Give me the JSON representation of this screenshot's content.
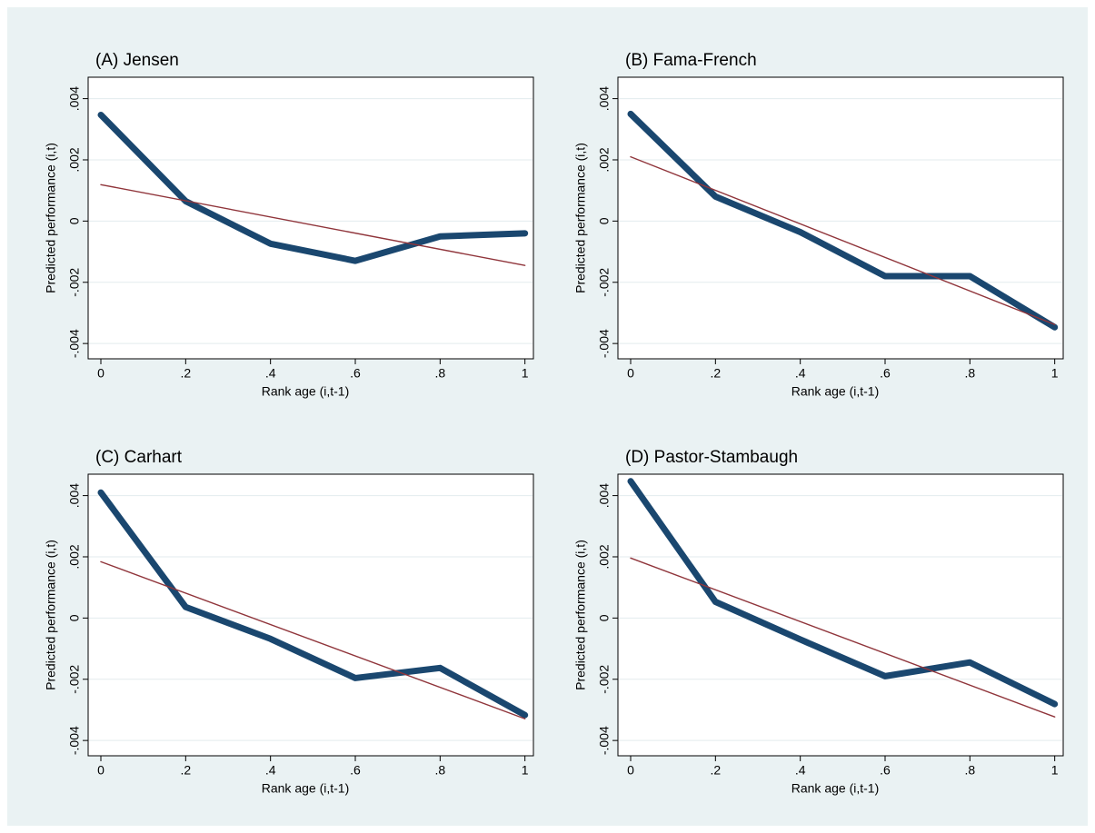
{
  "chart_data": [
    {
      "type": "line",
      "title": "(A) Jensen",
      "xlabel": "Rank age (i,t-1)",
      "ylabel": "Predicted performance (i,t)",
      "xlim": [
        -0.03,
        1.02
      ],
      "ylim": [
        -0.0045,
        0.0047
      ],
      "xticks": [
        0,
        {
          "value": 0.2,
          "label": ".2"
        },
        {
          "value": 0.4,
          "label": ".4"
        },
        {
          "value": 0.6,
          "label": ".6"
        },
        {
          "value": 0.8,
          "label": ".8"
        },
        1
      ],
      "yticks": [
        {
          "value": -0.004,
          "label": "-.004"
        },
        {
          "value": -0.002,
          "label": "-.002"
        },
        0,
        {
          "value": 0.002,
          "label": ".002"
        },
        {
          "value": 0.004,
          "label": ".004"
        }
      ],
      "grid": true,
      "series": [
        {
          "color": "#1a476f",
          "x": [
            0,
            0.2,
            0.4,
            0.6,
            0.8,
            1
          ],
          "values": [
            0.00347,
            0.00065,
            -0.00074,
            -0.0013,
            -0.0005,
            -0.0004
          ]
        },
        {
          "color": "#90353b",
          "x": [
            0,
            1
          ],
          "values": [
            0.00119,
            -0.00145
          ]
        }
      ]
    },
    {
      "type": "line",
      "title": "(B) Fama-French",
      "xlabel": "Rank age (i,t-1)",
      "ylabel": "Predicted performance (i,t)",
      "xlim": [
        -0.03,
        1.02
      ],
      "ylim": [
        -0.0045,
        0.0047
      ],
      "xticks": [
        0,
        {
          "value": 0.2,
          "label": ".2"
        },
        {
          "value": 0.4,
          "label": ".4"
        },
        {
          "value": 0.6,
          "label": ".6"
        },
        {
          "value": 0.8,
          "label": ".8"
        },
        1
      ],
      "yticks": [
        {
          "value": -0.004,
          "label": "-.004"
        },
        {
          "value": -0.002,
          "label": "-.002"
        },
        0,
        {
          "value": 0.002,
          "label": ".002"
        },
        {
          "value": 0.004,
          "label": ".004"
        }
      ],
      "grid": true,
      "series": [
        {
          "color": "#1a476f",
          "x": [
            0,
            0.2,
            0.4,
            0.6,
            0.8,
            1
          ],
          "values": [
            0.0035,
            0.0008,
            -0.00036,
            -0.0018,
            -0.0018,
            -0.00347
          ]
        },
        {
          "color": "#90353b",
          "x": [
            0,
            1
          ],
          "values": [
            0.0021,
            -0.00338
          ]
        }
      ]
    },
    {
      "type": "line",
      "title": "(C) Carhart",
      "xlabel": "Rank age (i,t-1)",
      "ylabel": "Predicted performance (i,t)",
      "xlim": [
        -0.03,
        1.02
      ],
      "ylim": [
        -0.0045,
        0.0047
      ],
      "xticks": [
        0,
        {
          "value": 0.2,
          "label": ".2"
        },
        {
          "value": 0.4,
          "label": ".4"
        },
        {
          "value": 0.6,
          "label": ".6"
        },
        {
          "value": 0.8,
          "label": ".8"
        },
        1
      ],
      "yticks": [
        {
          "value": -0.004,
          "label": "-.004"
        },
        {
          "value": -0.002,
          "label": "-.002"
        },
        0,
        {
          "value": 0.002,
          "label": ".002"
        },
        {
          "value": 0.004,
          "label": ".004"
        }
      ],
      "grid": true,
      "series": [
        {
          "color": "#1a476f",
          "x": [
            0,
            0.2,
            0.4,
            0.6,
            0.8,
            1
          ],
          "values": [
            0.0041,
            0.00036,
            -0.00068,
            -0.00196,
            -0.00163,
            -0.00317
          ]
        },
        {
          "color": "#90353b",
          "x": [
            0,
            1
          ],
          "values": [
            0.00184,
            -0.00329
          ]
        }
      ]
    },
    {
      "type": "line",
      "title": "(D) Pastor-Stambaugh",
      "xlabel": "Rank age (i,t-1)",
      "ylabel": "Predicted performance (i,t)",
      "xlim": [
        -0.03,
        1.02
      ],
      "ylim": [
        -0.0045,
        0.0047
      ],
      "xticks": [
        0,
        {
          "value": 0.2,
          "label": ".2"
        },
        {
          "value": 0.4,
          "label": ".4"
        },
        {
          "value": 0.6,
          "label": ".6"
        },
        {
          "value": 0.8,
          "label": ".8"
        },
        1
      ],
      "yticks": [
        {
          "value": -0.004,
          "label": "-.004"
        },
        {
          "value": -0.002,
          "label": "-.002"
        },
        0,
        {
          "value": 0.002,
          "label": ".002"
        },
        {
          "value": 0.004,
          "label": ".004"
        }
      ],
      "grid": true,
      "series": [
        {
          "color": "#1a476f",
          "x": [
            0,
            0.2,
            0.4,
            0.6,
            0.8,
            1
          ],
          "values": [
            0.00447,
            0.00053,
            -0.0007,
            -0.0019,
            -0.00145,
            -0.00281
          ]
        },
        {
          "color": "#90353b",
          "x": [
            0,
            1
          ],
          "values": [
            0.00196,
            -0.00323
          ]
        }
      ]
    }
  ]
}
